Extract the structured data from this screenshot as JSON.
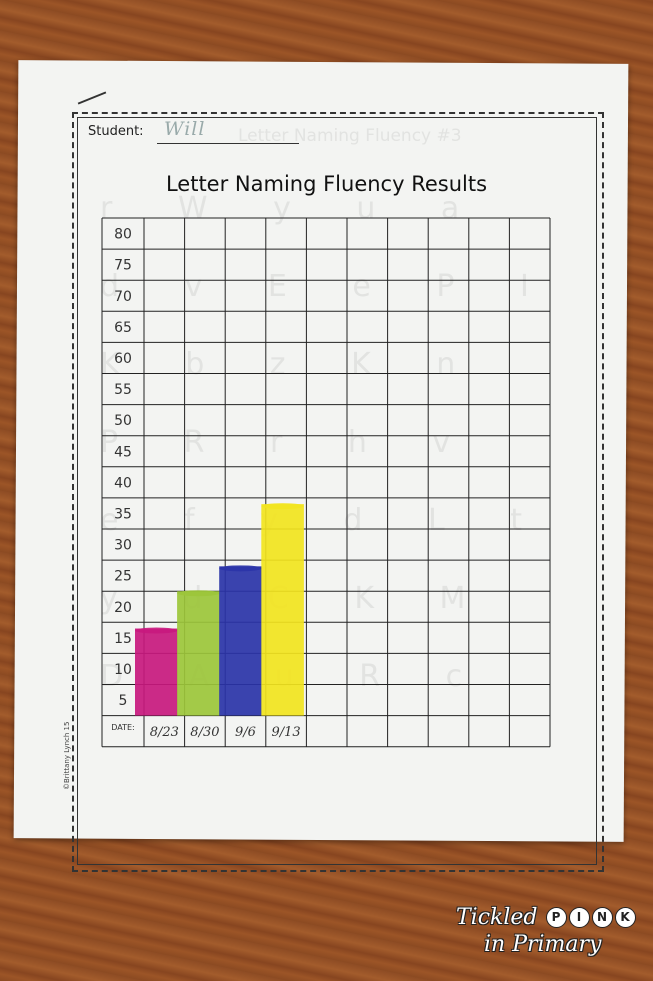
{
  "worksheet": {
    "student_label": "Student:",
    "student_name": "Will",
    "ghost_title": "Letter Naming Fluency #3",
    "ghost_letters": "r W y u a d v E e P I K b z K n P R r h v e f y d L t y d C K M D A u R c F A z G I J o D E s n T U S P J T f M g N y H Q o Q z e",
    "copyright": "©Brittany Lynch 15",
    "date_header": "DATE:"
  },
  "chart_data": {
    "type": "bar",
    "title": "Letter Naming Fluency Results",
    "xlabel": "DATE:",
    "ylabel": "",
    "categories": [
      "8/23",
      "8/30",
      "9/6",
      "9/13"
    ],
    "values": [
      14,
      20,
      24,
      34
    ],
    "y_ticks": [
      80,
      75,
      70,
      65,
      60,
      55,
      50,
      45,
      40,
      35,
      30,
      25,
      20,
      15,
      10,
      5
    ],
    "ylim": [
      0,
      80
    ],
    "total_columns": 10,
    "grid": true,
    "colors": [
      "#c8187e",
      "#9cc63a",
      "#2a33a8",
      "#f2e41e"
    ]
  },
  "logo": {
    "line1_prefix": "Tickled",
    "line1_letters": [
      "P",
      "I",
      "N",
      "K"
    ],
    "line2": "in Primary"
  }
}
